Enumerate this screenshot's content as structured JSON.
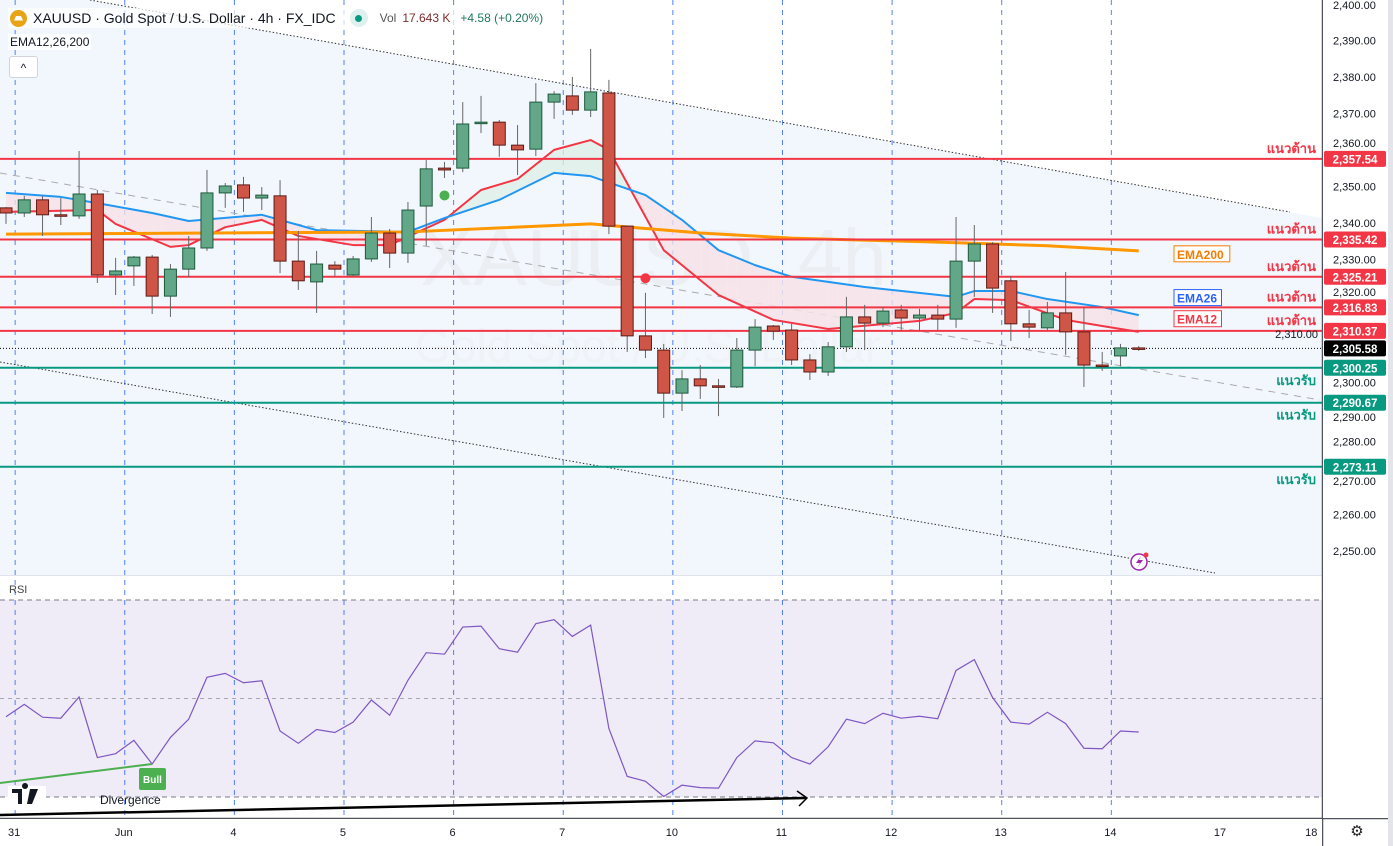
{
  "header": {
    "symbol_title": "XAUUSD · Gold Spot / U.S. Dollar · 4h · FX_IDC",
    "vol_label": "Vol",
    "vol_value": "17.643 K",
    "change": "+4.58 (+0.20%)",
    "indicator": "EMA12,26,200",
    "collapse_label": "^"
  },
  "watermark": {
    "line1": "XAUUSD, 4h",
    "line2": "Gold Spot / U.S. Dollar"
  },
  "rsi_title": "RSI",
  "settings_icon": "gear-icon",
  "chart_data": [
    {
      "type": "candlestick",
      "title": "XAUUSD · Gold Spot / U.S. Dollar · 4h · FX_IDC",
      "ylim": [
        2245,
        2401
      ],
      "y_ticks": [
        2400,
        2390,
        2380,
        2370,
        2360,
        2350,
        2340,
        2330,
        2320,
        2310,
        2300,
        2290,
        2280,
        2270,
        2260,
        2250
      ],
      "x_ticks": [
        {
          "label": "31",
          "index": 0.5
        },
        {
          "label": "Jun",
          "index": 6.5
        },
        {
          "label": "4",
          "index": 12.5
        },
        {
          "label": "5",
          "index": 18.5
        },
        {
          "label": "6",
          "index": 24.5
        },
        {
          "label": "7",
          "index": 30.5
        },
        {
          "label": "10",
          "index": 36.5
        },
        {
          "label": "11",
          "index": 42.5
        },
        {
          "label": "12",
          "index": 48.5
        },
        {
          "label": "13",
          "index": 54.5
        },
        {
          "label": "14",
          "index": 60.5
        },
        {
          "label": "17",
          "index": 66.5
        },
        {
          "label": "18",
          "index": 71.5
        }
      ],
      "candles_ohlc": [
        [
          2344.1,
          2344.3,
          2339.7,
          2342.7
        ],
        [
          2342.7,
          2347.4,
          2341.6,
          2346.3
        ],
        [
          2346.3,
          2347.4,
          2336.4,
          2342.2
        ],
        [
          2342.2,
          2346.8,
          2339.4,
          2342.0
        ],
        [
          2341.9,
          2359.7,
          2341.1,
          2347.9
        ],
        [
          2347.9,
          2349.0,
          2323.5,
          2325.7
        ],
        [
          2325.7,
          2330.4,
          2320.2,
          2326.8
        ],
        [
          2328.2,
          2330.9,
          2322.7,
          2330.6
        ],
        [
          2330.6,
          2331.2,
          2315.0,
          2319.9
        ],
        [
          2319.9,
          2328.7,
          2314.2,
          2327.3
        ],
        [
          2327.3,
          2336.4,
          2325.2,
          2333.1
        ],
        [
          2333.1,
          2354.5,
          2332.3,
          2348.2
        ],
        [
          2348.2,
          2350.9,
          2344.1,
          2350.1
        ],
        [
          2350.4,
          2352.6,
          2343.0,
          2346.8
        ],
        [
          2346.8,
          2349.8,
          2343.5,
          2347.6
        ],
        [
          2347.4,
          2351.7,
          2326.2,
          2329.5
        ],
        [
          2329.5,
          2337.8,
          2321.6,
          2324.1
        ],
        [
          2323.8,
          2332.3,
          2315.3,
          2328.7
        ],
        [
          2328.4,
          2329.5,
          2325.4,
          2327.3
        ],
        [
          2325.7,
          2330.9,
          2325.2,
          2330.1
        ],
        [
          2330.1,
          2341.6,
          2329.3,
          2337.2
        ],
        [
          2337.2,
          2338.3,
          2327.6,
          2331.7
        ],
        [
          2331.7,
          2345.7,
          2329.0,
          2343.5
        ],
        [
          2344.6,
          2357.2,
          2333.7,
          2354.8
        ],
        [
          2355.0,
          2356.7,
          2352.3,
          2354.5
        ],
        [
          2355.0,
          2373.1,
          2353.9,
          2367.1
        ],
        [
          2367.4,
          2374.8,
          2364.6,
          2367.6
        ],
        [
          2367.6,
          2368.2,
          2358.1,
          2361.3
        ],
        [
          2361.3,
          2366.8,
          2353.1,
          2360.0
        ],
        [
          2360.2,
          2378.3,
          2358.3,
          2373.1
        ],
        [
          2373.1,
          2376.1,
          2368.5,
          2375.3
        ],
        [
          2374.8,
          2380.0,
          2369.6,
          2370.9
        ],
        [
          2370.9,
          2387.7,
          2369.0,
          2375.9
        ],
        [
          2375.6,
          2379.2,
          2336.9,
          2339.1
        ],
        [
          2339.1,
          2339.1,
          2304.6,
          2309.0
        ],
        [
          2309.0,
          2320.8,
          2302.9,
          2305.1
        ],
        [
          2305.1,
          2306.8,
          2286.5,
          2293.3
        ],
        [
          2293.3,
          2299.6,
          2288.4,
          2297.2
        ],
        [
          2297.2,
          2301.0,
          2291.7,
          2295.3
        ],
        [
          2295.3,
          2297.2,
          2287.0,
          2295.0
        ],
        [
          2295.0,
          2308.4,
          2294.7,
          2305.1
        ],
        [
          2305.1,
          2313.6,
          2300.7,
          2311.4
        ],
        [
          2311.7,
          2312.0,
          2307.9,
          2310.3
        ],
        [
          2310.6,
          2312.3,
          2301.0,
          2302.4
        ],
        [
          2302.4,
          2304.0,
          2296.9,
          2299.1
        ],
        [
          2299.1,
          2307.3,
          2298.0,
          2306.0
        ],
        [
          2306.0,
          2319.7,
          2304.6,
          2314.2
        ],
        [
          2314.2,
          2317.5,
          2305.1,
          2312.5
        ],
        [
          2312.5,
          2316.9,
          2311.4,
          2315.8
        ],
        [
          2316.1,
          2317.5,
          2310.3,
          2313.9
        ],
        [
          2313.9,
          2316.4,
          2310.3,
          2314.7
        ],
        [
          2314.7,
          2317.5,
          2310.6,
          2313.6
        ],
        [
          2313.6,
          2341.6,
          2311.2,
          2329.5
        ],
        [
          2329.5,
          2339.4,
          2319.7,
          2334.2
        ],
        [
          2334.2,
          2334.7,
          2315.3,
          2322.1
        ],
        [
          2324.1,
          2325.4,
          2307.6,
          2312.3
        ],
        [
          2312.3,
          2316.1,
          2308.4,
          2311.4
        ],
        [
          2311.2,
          2318.3,
          2310.6,
          2315.3
        ],
        [
          2315.3,
          2326.5,
          2303.8,
          2310.1
        ],
        [
          2310.1,
          2316.7,
          2295.0,
          2301.0
        ],
        [
          2301.0,
          2304.6,
          2299.4,
          2300.7
        ],
        [
          2303.5,
          2306.8,
          2300.7,
          2305.7
        ],
        [
          2305.7,
          2306.2,
          2304.9,
          2305.58
        ]
      ],
      "ema": [
        {
          "name": "EMA12",
          "color": "#f23645",
          "points": [
            [
              0,
              2343.0
            ],
            [
              5,
              2343.5
            ],
            [
              6,
              2339.7
            ],
            [
              9,
              2333.4
            ],
            [
              10,
              2333.9
            ],
            [
              12,
              2338.8
            ],
            [
              14,
              2340.8
            ],
            [
              16,
              2336.4
            ],
            [
              19,
              2333.9
            ],
            [
              21,
              2333.9
            ],
            [
              24,
              2340.8
            ],
            [
              26,
              2349.0
            ],
            [
              28,
              2352.0
            ],
            [
              30,
              2360.0
            ],
            [
              32,
              2362.7
            ],
            [
              33,
              2360.0
            ],
            [
              36,
              2332.5
            ],
            [
              39,
              2320.2
            ],
            [
              42,
              2313.4
            ],
            [
              45,
              2310.9
            ],
            [
              50,
              2313.1
            ],
            [
              52,
              2315.3
            ],
            [
              53,
              2319.1
            ],
            [
              55,
              2318.8
            ],
            [
              58,
              2313.4
            ],
            [
              60,
              2311.7
            ],
            [
              62,
              2310.1
            ]
          ]
        },
        {
          "name": "EMA26",
          "color": "#2196f3",
          "points": [
            [
              0,
              2348.2
            ],
            [
              3,
              2347.1
            ],
            [
              5,
              2345.4
            ],
            [
              8,
              2342.7
            ],
            [
              10,
              2340.5
            ],
            [
              14,
              2342.2
            ],
            [
              17,
              2338.0
            ],
            [
              22,
              2337.5
            ],
            [
              24,
              2341.3
            ],
            [
              27,
              2346.3
            ],
            [
              30,
              2353.7
            ],
            [
              32,
              2352.8
            ],
            [
              35,
              2347.6
            ],
            [
              37,
              2340.8
            ],
            [
              39,
              2332.5
            ],
            [
              41,
              2328.4
            ],
            [
              43,
              2325.2
            ],
            [
              47,
              2322.4
            ],
            [
              52,
              2319.7
            ],
            [
              53,
              2321.3
            ],
            [
              55,
              2321.3
            ],
            [
              57,
              2319.1
            ],
            [
              60,
              2316.9
            ],
            [
              62,
              2314.7
            ]
          ]
        },
        {
          "name": "EMA200",
          "color": "#ff9800",
          "points": [
            [
              0,
              2336.9
            ],
            [
              22,
              2337.5
            ],
            [
              32,
              2339.7
            ],
            [
              38,
              2337.2
            ],
            [
              43,
              2335.8
            ],
            [
              51,
              2334.7
            ],
            [
              57,
              2333.7
            ],
            [
              62,
              2332.3
            ]
          ]
        }
      ],
      "levels": [
        {
          "price": 2357.54,
          "label": "2,357.54",
          "kind": "resistance",
          "text": "แนวต้าน",
          "color": "#f23645"
        },
        {
          "price": 2335.42,
          "label": "2,335.42",
          "kind": "resistance",
          "text": "แนวต้าน",
          "color": "#f23645"
        },
        {
          "price": 2325.21,
          "label": "2,325.21",
          "kind": "resistance",
          "text": "แนวต้าน",
          "color": "#f23645"
        },
        {
          "price": 2316.83,
          "label": "2,316.83",
          "kind": "resistance",
          "text": "แนวต้าน",
          "color": "#f23645"
        },
        {
          "price": 2310.37,
          "label": "2,310.37",
          "kind": "resistance",
          "text": "แนวต้าน",
          "color": "#f23645"
        },
        {
          "price": 2300.25,
          "label": "2,300.25",
          "kind": "support",
          "text": "แนวรับ",
          "color": "#089981"
        },
        {
          "price": 2290.67,
          "label": "2,290.67",
          "kind": "support",
          "text": "แนวรับ",
          "color": "#089981"
        },
        {
          "price": 2273.11,
          "label": "2,273.11",
          "kind": "support",
          "text": "แนวรับ",
          "color": "#089981"
        }
      ],
      "last_price": {
        "price": 2305.58,
        "label": "2,305.58"
      },
      "ema_labels": [
        {
          "text": "EMA200",
          "price": 2331.5,
          "color": "#f57c00"
        },
        {
          "text": "EMA26",
          "price": 2319.5,
          "color": "#2962ff"
        },
        {
          "text": "EMA12",
          "price": 2313.7,
          "color": "#f23645"
        }
      ],
      "signal_dots": [
        {
          "index": 24,
          "price": 2347.5,
          "color": "#4caf50"
        },
        {
          "index": 35,
          "price": 2324.8,
          "color": "#f23645"
        }
      ]
    },
    {
      "type": "line",
      "title": "RSI",
      "ylim": [
        26,
        72
      ],
      "y_ticks": [
        70,
        60,
        50,
        40,
        30
      ],
      "band": [
        30,
        70
      ],
      "color": "#7e57c2",
      "values": [
        46.3,
        48.8,
        46.2,
        46.0,
        50.3,
        38.0,
        38.8,
        41.5,
        36.7,
        42.1,
        45.8,
        54.3,
        55.1,
        53.2,
        53.6,
        43.4,
        40.9,
        43.7,
        43.1,
        45.2,
        49.7,
        46.6,
        53.7,
        59.3,
        59.0,
        64.5,
        64.7,
        60.1,
        59.4,
        65.2,
        66.0,
        62.6,
        64.9,
        43.9,
        34.2,
        33.2,
        30.1,
        32.4,
        31.9,
        31.8,
        38.0,
        41.4,
        41.0,
        38.0,
        36.7,
        40.2,
        45.8,
        44.9,
        47.0,
        46.0,
        46.4,
        45.9,
        55.7,
        57.9,
        50.2,
        45.2,
        44.8,
        47.2,
        44.9,
        39.9,
        39.8,
        43.4,
        43.2
      ],
      "annotations": {
        "bull_label": "Bull",
        "divergence_label": "Divergence"
      }
    }
  ]
}
